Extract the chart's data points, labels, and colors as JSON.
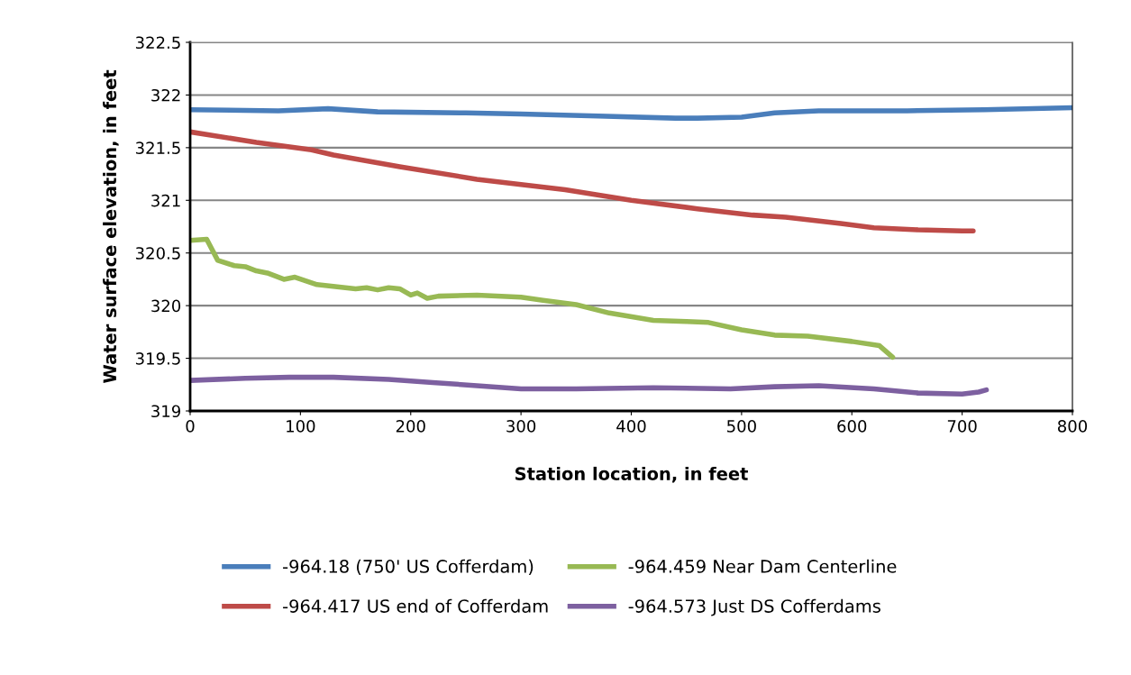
{
  "chart_data": {
    "type": "line",
    "xlabel": "Station location, in feet",
    "ylabel": "Water surface elevation, in feet",
    "xlim": [
      0,
      800
    ],
    "xticks": [
      0,
      100,
      200,
      300,
      400,
      500,
      600,
      700,
      800
    ],
    "ylim": [
      319,
      322.5
    ],
    "yticks": [
      319,
      {
        "value": 319.5,
        "label": "319.5"
      },
      320,
      {
        "value": 320.5,
        "label": "320.5"
      },
      321,
      {
        "value": 321.5,
        "label": "321.5"
      },
      322,
      {
        "value": 322.5,
        "label": "322.5"
      }
    ],
    "grid": "y",
    "legend": "bottom",
    "marker": "none",
    "line_style": "solid",
    "series": [
      {
        "name": "-964.18 (750' US Cofferdam)",
        "color": "#4a7ebb",
        "x": [
          0,
          80,
          125,
          170,
          250,
          300,
          370,
          440,
          460,
          500,
          530,
          570,
          650,
          720,
          800
        ],
        "values": [
          321.86,
          321.85,
          321.87,
          321.84,
          321.83,
          321.82,
          321.8,
          321.78,
          321.78,
          321.79,
          321.83,
          321.85,
          321.85,
          321.86,
          321.88
        ]
      },
      {
        "name": "-964.417 US end of Cofferdam",
        "color": "#be4b48",
        "x": [
          0,
          60,
          110,
          130,
          190,
          260,
          340,
          400,
          460,
          510,
          540,
          590,
          620,
          660,
          700,
          710
        ],
        "values": [
          321.65,
          321.55,
          321.48,
          321.43,
          321.32,
          321.2,
          321.1,
          321.0,
          320.92,
          320.86,
          320.84,
          320.78,
          320.74,
          320.72,
          320.71,
          320.71
        ]
      },
      {
        "name": "-964.459 Near Dam Centerline",
        "color": "#98b954",
        "x": [
          0,
          15,
          25,
          40,
          50,
          60,
          70,
          85,
          95,
          115,
          150,
          160,
          170,
          180,
          190,
          200,
          206,
          215,
          225,
          260,
          300,
          320,
          350,
          380,
          420,
          450,
          470,
          500,
          530,
          560,
          600,
          625,
          637
        ],
        "values": [
          320.62,
          320.63,
          320.43,
          320.38,
          320.37,
          320.33,
          320.31,
          320.25,
          320.27,
          320.2,
          320.16,
          320.17,
          320.15,
          320.17,
          320.16,
          320.1,
          320.12,
          320.07,
          320.09,
          320.1,
          320.08,
          320.05,
          320.01,
          319.93,
          319.86,
          319.85,
          319.84,
          319.77,
          319.72,
          319.71,
          319.66,
          319.62,
          319.51
        ]
      },
      {
        "name": "-964.573 Just DS Cofferdams",
        "color": "#7d60a0",
        "x": [
          0,
          50,
          90,
          130,
          180,
          220,
          260,
          300,
          350,
          420,
          490,
          530,
          570,
          620,
          660,
          700,
          715,
          722
        ],
        "values": [
          319.29,
          319.31,
          319.32,
          319.32,
          319.3,
          319.27,
          319.24,
          319.21,
          319.21,
          319.22,
          319.21,
          319.23,
          319.24,
          319.21,
          319.17,
          319.16,
          319.18,
          319.2
        ]
      }
    ]
  }
}
